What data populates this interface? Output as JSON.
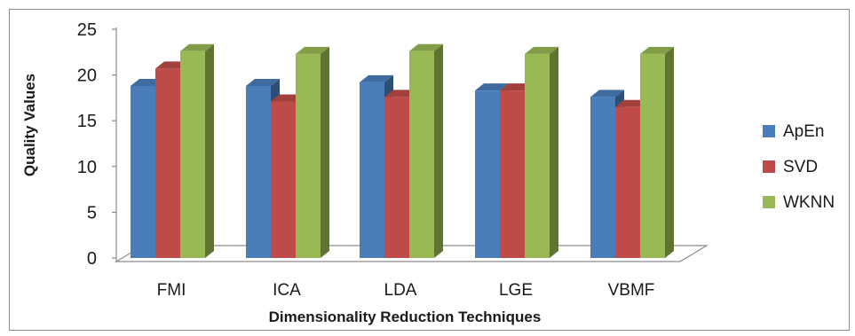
{
  "chart_data": {
    "type": "bar",
    "categories": [
      "FMI",
      "ICA",
      "LDA",
      "LGE",
      "VBMF"
    ],
    "series": [
      {
        "name": "ApEn",
        "values": [
          18.8,
          18.8,
          19.2,
          18.3,
          17.6
        ]
      },
      {
        "name": "SVD",
        "values": [
          20.7,
          17.1,
          17.6,
          18.3,
          16.5
        ]
      },
      {
        "name": "WKNN",
        "values": [
          22.6,
          22.3,
          22.6,
          22.3,
          22.3
        ]
      }
    ],
    "xlabel": "Dimensionality Reduction Techniques",
    "ylabel": "Quality Values",
    "ylim": [
      0,
      25
    ],
    "yticks": [
      0,
      5,
      10,
      15,
      20,
      25
    ],
    "grid": false,
    "legend_position": "right",
    "colors": {
      "ApEn": "#4a7ebb",
      "SVD": "#be4b48",
      "WKNN": "#98b954",
      "floor": "#ffffff",
      "axis": "#8c8c8c"
    }
  }
}
